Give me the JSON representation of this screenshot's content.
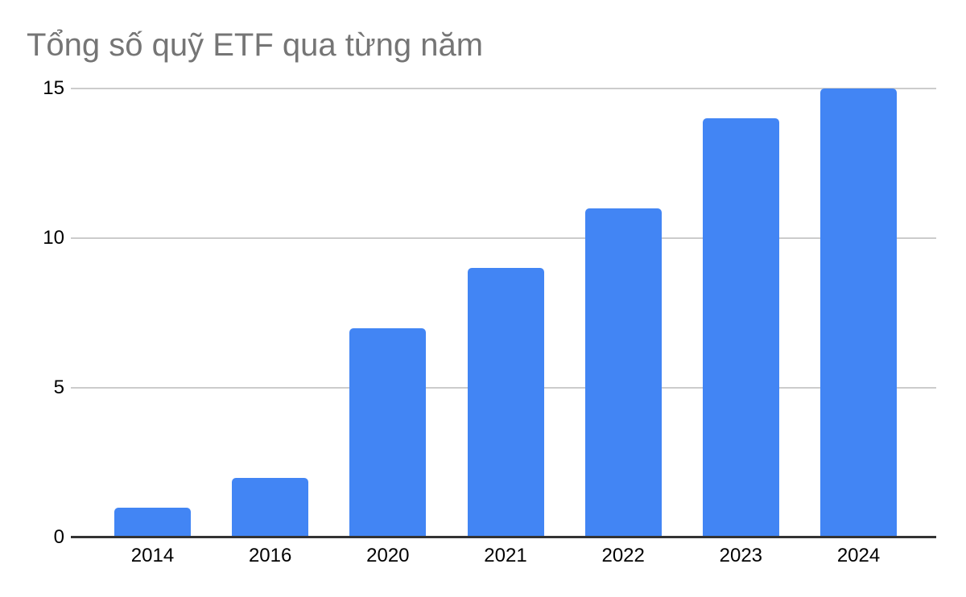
{
  "chart_data": {
    "type": "bar",
    "title": "Tổng số quỹ ETF qua từng năm",
    "categories": [
      "2014",
      "2016",
      "2020",
      "2021",
      "2022",
      "2023",
      "2024"
    ],
    "values": [
      1,
      2,
      7,
      9,
      11,
      14,
      15
    ],
    "xlabel": "",
    "ylabel": "",
    "ylim": [
      0,
      15
    ],
    "yticks": [
      0,
      5,
      10,
      15
    ],
    "grid": true,
    "legend": "none",
    "colors": {
      "bar": "#4285f4",
      "gridline": "#cccccc",
      "axis_line": "#333333",
      "title": "#757575",
      "tick_label": "#000000",
      "background": "#ffffff"
    }
  }
}
